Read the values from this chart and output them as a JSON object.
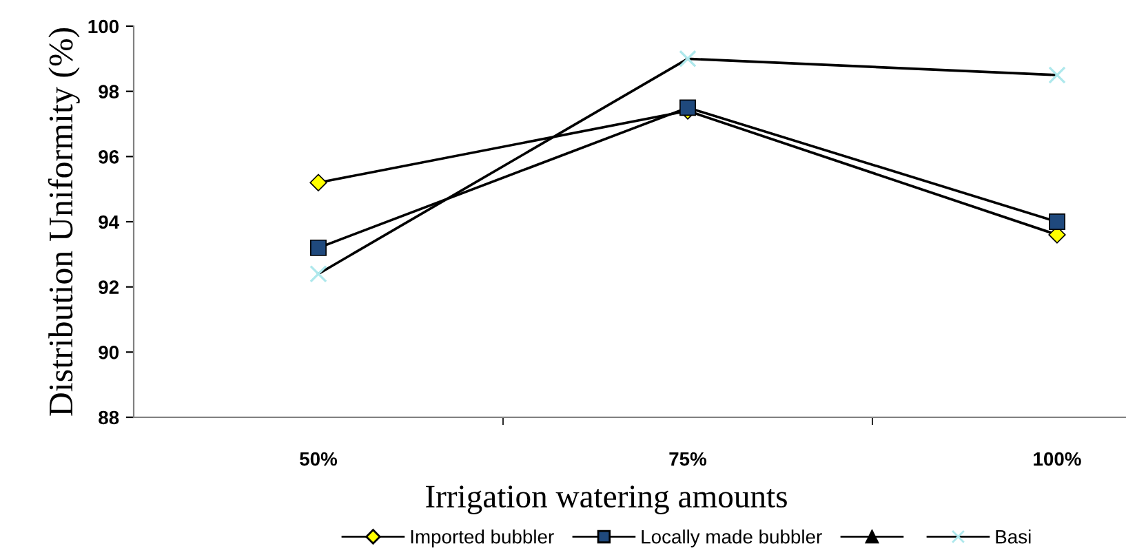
{
  "chart_data": {
    "type": "line",
    "xlabel": "Irrigation watering amounts",
    "ylabel": "Distribution Uniformity (%)",
    "categories": [
      "50%",
      "75%",
      "100%"
    ],
    "ylim": [
      88,
      100
    ],
    "yticks": [
      88,
      90,
      92,
      94,
      96,
      98,
      100
    ],
    "grid": false,
    "legend": "bottom",
    "series": [
      {
        "name": "Imported bubbler",
        "color": "#000000",
        "colors": [
          "#ffff00",
          "#ffff00",
          "#ffff00"
        ],
        "marker": "diamond",
        "values": [
          95.2,
          97.4,
          93.6
        ]
      },
      {
        "name": "Locally made bubbler",
        "color": "#000000",
        "colors": [
          "#1f497d",
          "#1f497d",
          "#1f497d"
        ],
        "marker": "square",
        "values": [
          93.2,
          97.5,
          94.0
        ]
      },
      {
        "color": "#000000",
        "colors": [
          "#000000",
          "#000000",
          "#000000"
        ],
        "marker": "triangle",
        "values": [
          null,
          null,
          null
        ]
      },
      {
        "name": "Basi",
        "color": "#000000",
        "colors": [
          "#aee8ec",
          "#aee8ec",
          "#aee8ec"
        ],
        "marker": "cross",
        "values": [
          92.4,
          99.0,
          98.5
        ]
      }
    ]
  }
}
